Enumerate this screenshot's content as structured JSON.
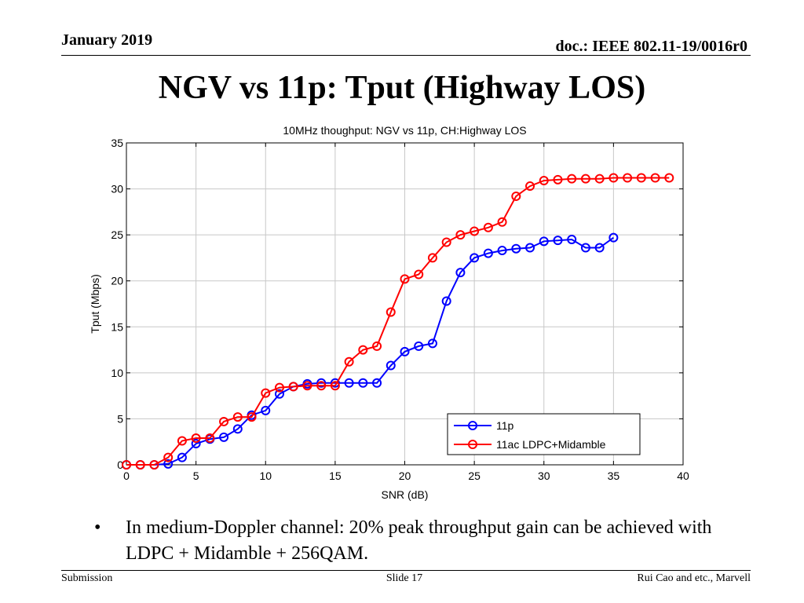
{
  "header": {
    "date": "January 2019",
    "doc": "doc.: IEEE 802.11-19/0016r0"
  },
  "slide_title": "NGV vs 11p: Tput (Highway LOS)",
  "bullet": {
    "symbol": "•",
    "text": "In medium-Doppler channel: 20% peak throughput gain can be achieved with LDPC + Midamble + 256QAM."
  },
  "footer": {
    "left": "Submission",
    "center": "Slide 17",
    "right": "Rui Cao and etc., Marvell"
  },
  "chart_data": {
    "type": "line",
    "title": "10MHz thoughput: NGV vs 11p, CH:Highway LOS",
    "xlabel": "SNR (dB)",
    "ylabel": "Tput (Mbps)",
    "xlim": [
      0,
      40
    ],
    "ylim": [
      0,
      35
    ],
    "xticks": [
      0,
      5,
      10,
      15,
      20,
      25,
      30,
      35,
      40
    ],
    "yticks": [
      0,
      5,
      10,
      15,
      20,
      25,
      30,
      35
    ],
    "grid": true,
    "legend_position": "bottom-right",
    "series": [
      {
        "name": "11p",
        "color": "#0000ff",
        "marker": "circle",
        "x": [
          0,
          1,
          2,
          3,
          4,
          5,
          6,
          7,
          8,
          9,
          10,
          11,
          12,
          13,
          14,
          15,
          16,
          17,
          18,
          19,
          20,
          21,
          22,
          23,
          24,
          25,
          26,
          27,
          28,
          29,
          30,
          31,
          32,
          33,
          34,
          35
        ],
        "y": [
          0,
          0,
          0,
          0.1,
          0.8,
          2.3,
          2.8,
          3.0,
          3.9,
          5.4,
          5.9,
          7.7,
          8.5,
          8.8,
          8.9,
          8.9,
          8.9,
          8.9,
          8.9,
          10.8,
          12.3,
          12.9,
          13.2,
          17.8,
          20.9,
          22.5,
          23.0,
          23.3,
          23.5,
          23.6,
          24.3,
          24.4,
          24.5,
          23.6,
          23.6,
          24.7
        ]
      },
      {
        "name": "11ac LDPC+Midamble",
        "color": "#ff0000",
        "marker": "circle",
        "x": [
          0,
          1,
          2,
          3,
          4,
          5,
          6,
          7,
          8,
          9,
          10,
          11,
          12,
          13,
          14,
          15,
          16,
          17,
          18,
          19,
          20,
          21,
          22,
          23,
          24,
          25,
          26,
          27,
          28,
          29,
          30,
          31,
          32,
          33,
          34,
          35,
          36,
          37,
          38,
          39
        ],
        "y": [
          0,
          0,
          0,
          0.8,
          2.6,
          2.9,
          2.9,
          4.7,
          5.2,
          5.2,
          7.8,
          8.4,
          8.5,
          8.6,
          8.6,
          8.6,
          11.2,
          12.5,
          12.9,
          16.6,
          20.2,
          20.7,
          22.5,
          24.2,
          25.0,
          25.4,
          25.8,
          26.4,
          29.2,
          30.3,
          30.9,
          31.0,
          31.1,
          31.1,
          31.1,
          31.2,
          31.2,
          31.2,
          31.2,
          31.2
        ]
      }
    ]
  }
}
